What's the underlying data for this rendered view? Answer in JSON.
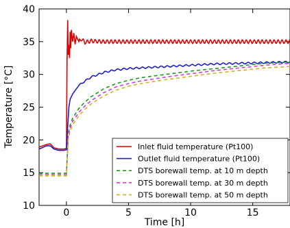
{
  "chart_data": {
    "type": "line",
    "title": "",
    "xlabel": "Time [h]",
    "ylabel": "Temperature [°C]",
    "xlim": [
      -2.2,
      18.0
    ],
    "ylim": [
      10,
      40
    ],
    "xticks": [
      0,
      5,
      10,
      15
    ],
    "yticks": [
      10,
      15,
      20,
      25,
      30,
      35,
      40
    ],
    "grid": false,
    "legend_location": "lower-right",
    "series": [
      {
        "name": "Inlet fluid temperature (Pt100)",
        "color": "#e00000",
        "style": "solid",
        "x": [
          -2.2,
          -1.6,
          -1.3,
          -1.0,
          -0.6,
          -0.2,
          0.0,
          0.05,
          0.1,
          0.15,
          0.2,
          0.25,
          0.3,
          0.35,
          0.4,
          0.5,
          0.6,
          0.7,
          0.8,
          1.0,
          1.2,
          1.5,
          2.0,
          3.0,
          5.0,
          8.0,
          11.0,
          14.0,
          16.0,
          18.0
        ],
        "y": [
          18.9,
          19.3,
          19.4,
          18.8,
          18.6,
          18.6,
          18.7,
          32.0,
          38.3,
          33.0,
          34.5,
          32.5,
          36.5,
          34.0,
          36.8,
          35.0,
          36.3,
          34.6,
          35.8,
          35.0,
          35.4,
          34.9,
          35.1,
          35.0,
          35.0,
          35.0,
          35.0,
          35.0,
          35.0,
          35.0
        ]
      },
      {
        "name": "Outlet fluid temperature (Pt100)",
        "color": "#1c1ccf",
        "style": "solid",
        "x": [
          -2.2,
          -1.6,
          -1.3,
          -1.0,
          -0.6,
          -0.2,
          0.0,
          0.1,
          0.2,
          0.3,
          0.5,
          0.8,
          1.0,
          1.5,
          2.0,
          3.0,
          4.0,
          5.0,
          6.0,
          8.0,
          10.0,
          12.0,
          14.0,
          16.0,
          18.0
        ],
        "y": [
          18.6,
          19.1,
          19.1,
          18.6,
          18.4,
          18.4,
          18.5,
          22.0,
          25.0,
          26.2,
          27.0,
          27.8,
          28.3,
          29.0,
          29.6,
          30.3,
          30.7,
          30.9,
          31.0,
          31.2,
          31.4,
          31.6,
          31.7,
          31.8,
          31.9
        ]
      },
      {
        "name": "DTS borewall temp. at 10 m depth",
        "color": "#1a9a1a",
        "style": "dashed",
        "x": [
          -2.2,
          -1.0,
          0.0,
          0.15,
          0.3,
          0.5,
          1.0,
          1.5,
          2.0,
          3.0,
          4.0,
          5.0,
          6.0,
          8.0,
          10.0,
          12.0,
          14.0,
          16.0,
          18.0
        ],
        "y": [
          14.9,
          14.9,
          14.9,
          21.0,
          22.3,
          23.3,
          24.8,
          25.8,
          26.6,
          27.8,
          28.6,
          29.1,
          29.5,
          30.0,
          30.5,
          30.9,
          31.3,
          31.7,
          31.9
        ]
      },
      {
        "name": "DTS borewall temp. at 30 m depth",
        "color": "#d23ad2",
        "style": "dashed",
        "x": [
          -2.2,
          -1.0,
          0.0,
          0.15,
          0.3,
          0.5,
          1.0,
          1.5,
          2.0,
          3.0,
          4.0,
          5.0,
          6.0,
          8.0,
          10.0,
          12.0,
          14.0,
          16.0,
          18.0
        ],
        "y": [
          14.7,
          14.7,
          14.7,
          20.6,
          21.8,
          22.8,
          24.2,
          25.2,
          26.0,
          27.2,
          28.1,
          28.6,
          29.0,
          29.6,
          30.1,
          30.6,
          31.0,
          31.4,
          31.7
        ]
      },
      {
        "name": "DTS borewall temp. at 50 m depth",
        "color": "#d9b01a",
        "style": "dashed",
        "x": [
          -2.2,
          -1.0,
          0.0,
          0.15,
          0.3,
          0.5,
          1.0,
          1.5,
          2.0,
          3.0,
          4.0,
          5.0,
          6.0,
          8.0,
          10.0,
          12.0,
          14.0,
          16.0,
          18.0
        ],
        "y": [
          14.5,
          14.5,
          14.5,
          20.2,
          21.3,
          22.3,
          23.7,
          24.7,
          25.5,
          26.7,
          27.6,
          28.2,
          28.6,
          29.2,
          29.7,
          30.2,
          30.6,
          31.0,
          31.2
        ]
      }
    ]
  }
}
